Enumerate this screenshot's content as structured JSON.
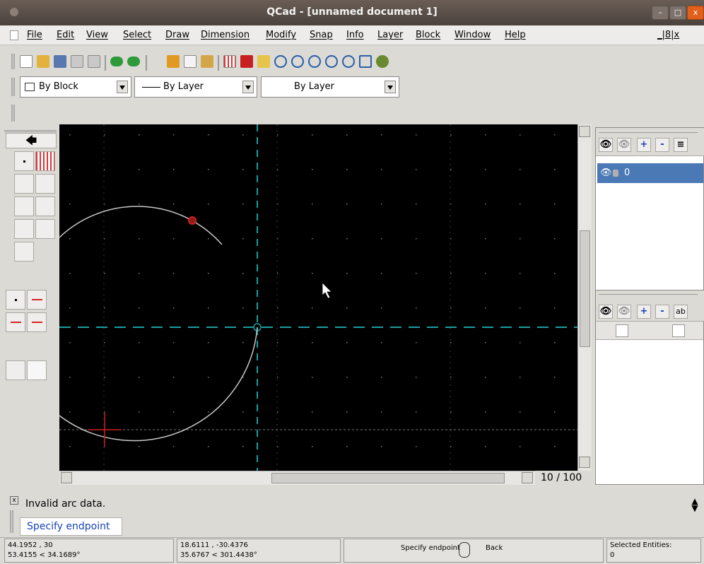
{
  "window": {
    "title": "QCad - [unnamed document 1]",
    "controls": {
      "minimize": "–",
      "maximize": "□",
      "close": "x"
    }
  },
  "menubar": {
    "items": [
      "File",
      "Edit",
      "View",
      "Select",
      "Draw",
      "Dimension",
      "Modify",
      "Snap",
      "Info",
      "Layer",
      "Block",
      "Window",
      "Help"
    ],
    "mdi_controls": "_|8|x"
  },
  "toolbar": {
    "icons": [
      "new-file-icon",
      "open-file-icon",
      "save-icon",
      "print-icon",
      "print-preview-icon",
      "undo-icon",
      "redo-icon",
      "cut-icon",
      "copy-icon",
      "paste-icon",
      "grid-icon",
      "draft-icon",
      "redraw-icon",
      "zoom-in-icon",
      "zoom-out-icon",
      "zoom-auto-icon",
      "zoom-previous-icon",
      "zoom-window-icon",
      "zoom-pan-icon"
    ]
  },
  "pen": {
    "color": "By Block",
    "linetype": "By Layer",
    "linewidth": "By Layer"
  },
  "canvas": {
    "background": "#000000",
    "axis_color": "#1a9e9e",
    "entity_color": "#c8c8c8",
    "marker_color": "#d21e1e"
  },
  "page_indicator": "10 / 100",
  "layers": {
    "items": [
      {
        "name": "0",
        "visible": true,
        "locked": false,
        "selected": true
      }
    ],
    "buttons": {
      "add": "+",
      "remove": "-"
    }
  },
  "blocks": {
    "buttons": {
      "add": "+",
      "remove": "-",
      "text": "ab"
    }
  },
  "command": {
    "history": "Invalid arc data.",
    "prompt": "Specify endpoint"
  },
  "status": {
    "abs_coord": "44.1952 , 30",
    "abs_polar": "53.4155 < 34.1689°",
    "rel_coord": "18.6111 , -30.4376",
    "rel_polar": "35.6767 < 301.4438°",
    "mouse_left": "Specify endpoint",
    "mouse_right": "Back",
    "selected_label": "Selected Entities:",
    "selected_count": "0"
  }
}
